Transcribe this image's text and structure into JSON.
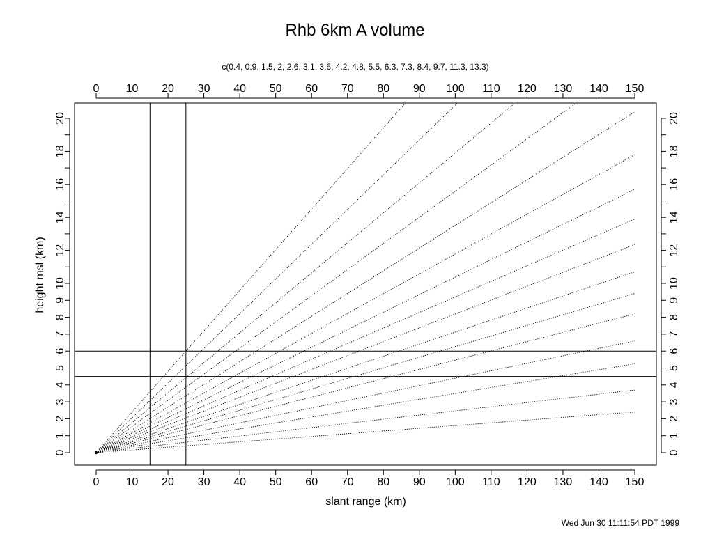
{
  "chart_data": {
    "type": "line",
    "title": "Rhb 6km A volume",
    "subtitle": "c(0.4, 0.9, 1.5, 2, 2.6, 3.1, 3.6, 4.2, 4.8, 5.5, 6.3, 7.3, 8.4, 9.7, 11.3, 13.3)",
    "xlabel": "slant range (km)",
    "ylabel": "height msl (km)",
    "xlim": [
      -6,
      156
    ],
    "ylim": [
      -0.9,
      20.9
    ],
    "x_ticks": [
      0,
      10,
      20,
      30,
      40,
      50,
      60,
      70,
      80,
      90,
      100,
      110,
      120,
      130,
      140,
      150
    ],
    "y_ticks": [
      0,
      1,
      2,
      3,
      4,
      5,
      6,
      7,
      8,
      9,
      10,
      12,
      14,
      16,
      18,
      20
    ],
    "y_minor_ticks": [
      11,
      13,
      15,
      17,
      19
    ],
    "y_axis_scale": "piecewise: 1 km steps to 10, 2 km steps from 10 to 20",
    "elevation_angles_deg": [
      0.4,
      0.9,
      1.5,
      2,
      2.6,
      3.1,
      3.6,
      4.2,
      4.8,
      5.5,
      6.3,
      7.3,
      8.4,
      9.7,
      11.3,
      13.3
    ],
    "beams": [
      {
        "angle": 0.4,
        "x": [
          0,
          150
        ],
        "y": [
          0,
          2.4
        ]
      },
      {
        "angle": 0.9,
        "x": [
          0,
          150
        ],
        "y": [
          0,
          3.7
        ]
      },
      {
        "angle": 1.5,
        "x": [
          0,
          150
        ],
        "y": [
          0,
          5.25
        ]
      },
      {
        "angle": 2,
        "x": [
          0,
          150
        ],
        "y": [
          0,
          6.6
        ]
      },
      {
        "angle": 2.6,
        "x": [
          0,
          150
        ],
        "y": [
          0,
          8.2
        ]
      },
      {
        "angle": 3.1,
        "x": [
          0,
          150
        ],
        "y": [
          0,
          9.4
        ]
      },
      {
        "angle": 3.6,
        "x": [
          0,
          150
        ],
        "y": [
          0,
          10.7
        ]
      },
      {
        "angle": 4.2,
        "x": [
          0,
          150
        ],
        "y": [
          0,
          12.35
        ]
      },
      {
        "angle": 4.8,
        "x": [
          0,
          150
        ],
        "y": [
          0,
          13.9
        ]
      },
      {
        "angle": 5.5,
        "x": [
          0,
          150
        ],
        "y": [
          0,
          15.7
        ]
      },
      {
        "angle": 6.3,
        "x": [
          0,
          150
        ],
        "y": [
          0,
          17.8
        ]
      },
      {
        "angle": 7.3,
        "x": [
          0,
          150
        ],
        "y": [
          0,
          20.4
        ]
      },
      {
        "angle": 8.4,
        "x": [
          0,
          133.5
        ],
        "y": [
          0,
          20.9
        ]
      },
      {
        "angle": 9.7,
        "x": [
          0,
          116.5
        ],
        "y": [
          0,
          20.9
        ]
      },
      {
        "angle": 11.3,
        "x": [
          0,
          100.5
        ],
        "y": [
          0,
          20.9
        ]
      },
      {
        "angle": 13.3,
        "x": [
          0,
          86
        ],
        "y": [
          0,
          20.9
        ]
      }
    ],
    "vertical_reference_lines": [
      15,
      25
    ],
    "horizontal_reference_lines": [
      4.5,
      6
    ],
    "origin_point": {
      "x": 0,
      "y": 0
    },
    "grid": false,
    "axes": [
      "bottom",
      "top",
      "left",
      "right"
    ]
  },
  "timestamp": "Wed Jun 30 11:11:54 PDT 1999"
}
